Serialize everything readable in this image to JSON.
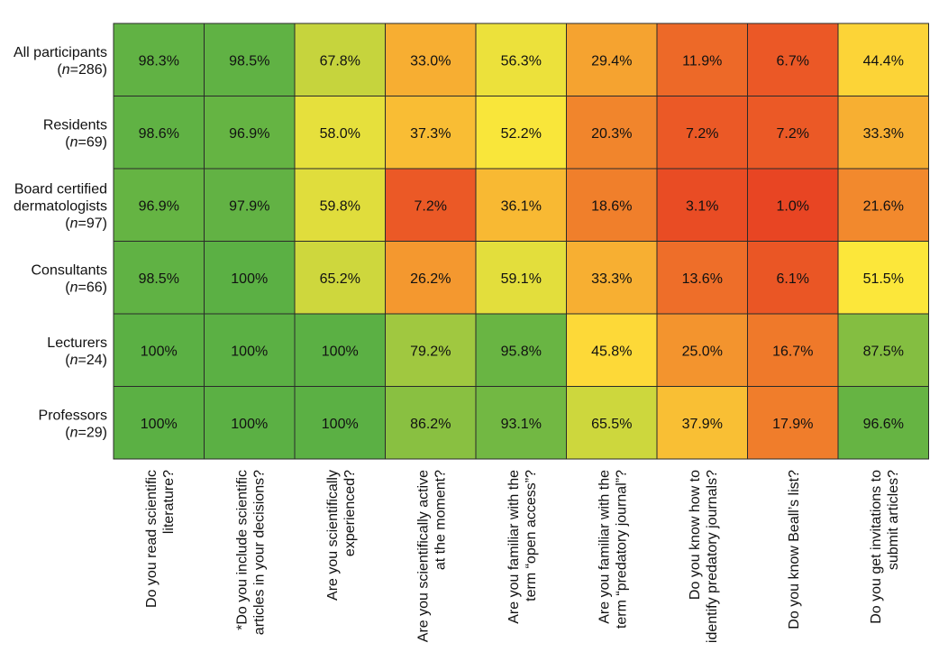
{
  "chart_data": {
    "type": "heatmap",
    "title": "",
    "xlabel": "",
    "ylabel": "",
    "rows": [
      {
        "lines": [
          {
            "text": "All participants"
          },
          {
            "pre": "(",
            "italic": "n",
            "post": "=286)"
          }
        ]
      },
      {
        "lines": [
          {
            "text": "Residents"
          },
          {
            "pre": "(",
            "italic": "n",
            "post": "=69)"
          }
        ]
      },
      {
        "lines": [
          {
            "text": "Board certified"
          },
          {
            "text": "dermatologists"
          },
          {
            "pre": "(",
            "italic": "n",
            "post": "=97)"
          }
        ]
      },
      {
        "lines": [
          {
            "text": "Consultants"
          },
          {
            "pre": "(",
            "italic": "n",
            "post": "=66)"
          }
        ]
      },
      {
        "lines": [
          {
            "text": "Lecturers"
          },
          {
            "pre": "(",
            "italic": "n",
            "post": "=24)"
          }
        ]
      },
      {
        "lines": [
          {
            "text": "Professors"
          },
          {
            "pre": "(",
            "italic": "n",
            "post": "=29)"
          }
        ]
      }
    ],
    "columns": [
      {
        "lines": [
          "Do you read scientific",
          "literature?"
        ]
      },
      {
        "lines": [
          "*Do you include scientific",
          "articles in your decisions?"
        ]
      },
      {
        "lines": [
          "Are you scientifically",
          "experienced?"
        ]
      },
      {
        "lines": [
          "Are you scientifically active",
          "at the moment?"
        ]
      },
      {
        "lines": [
          "Are you familiar with the",
          "term “open access”?"
        ]
      },
      {
        "lines": [
          "Are you familiar with the",
          "term “predatory journal”?"
        ]
      },
      {
        "lines": [
          "Do you know how to",
          "identify predatory journals?"
        ]
      },
      {
        "lines": [
          "Do you know Beall’s list?"
        ]
      },
      {
        "lines": [
          "Do you get invitations to",
          "submit articles?"
        ]
      }
    ],
    "values": [
      [
        98.3,
        98.5,
        67.8,
        33.0,
        56.3,
        29.4,
        11.9,
        6.7,
        44.4
      ],
      [
        98.6,
        96.9,
        58.0,
        37.3,
        52.2,
        20.3,
        7.2,
        7.2,
        33.3
      ],
      [
        96.9,
        97.9,
        59.8,
        7.2,
        36.1,
        18.6,
        3.1,
        1.0,
        21.6
      ],
      [
        98.5,
        100,
        65.2,
        26.2,
        59.1,
        33.3,
        13.6,
        6.1,
        51.5
      ],
      [
        100,
        100,
        100,
        79.2,
        95.8,
        45.8,
        25.0,
        16.7,
        87.5
      ],
      [
        100,
        100,
        100,
        86.2,
        93.1,
        65.5,
        37.9,
        17.9,
        96.6
      ]
    ],
    "labels": [
      [
        "98.3%",
        "98.5%",
        "67.8%",
        "33.0%",
        "56.3%",
        "29.4%",
        "11.9%",
        "6.7%",
        "44.4%"
      ],
      [
        "98.6%",
        "96.9%",
        "58.0%",
        "37.3%",
        "52.2%",
        "20.3%",
        "7.2%",
        "7.2%",
        "33.3%"
      ],
      [
        "96.9%",
        "97.9%",
        "59.8%",
        "7.2%",
        "36.1%",
        "18.6%",
        "3.1%",
        "1.0%",
        "21.6%"
      ],
      [
        "98.5%",
        "100%",
        "65.2%",
        "26.2%",
        "59.1%",
        "33.3%",
        "13.6%",
        "6.1%",
        "51.5%"
      ],
      [
        "100%",
        "100%",
        "100%",
        "79.2%",
        "95.8%",
        "45.8%",
        "25.0%",
        "16.7%",
        "87.5%"
      ],
      [
        "100%",
        "100%",
        "100%",
        "86.2%",
        "93.1%",
        "65.5%",
        "37.9%",
        "17.9%",
        "96.6%"
      ]
    ],
    "colorscale": {
      "type": "diverging",
      "low": "#e84523",
      "mid": "#ffe83a",
      "high": "#5bb044",
      "border": "#2a2a2a"
    }
  }
}
